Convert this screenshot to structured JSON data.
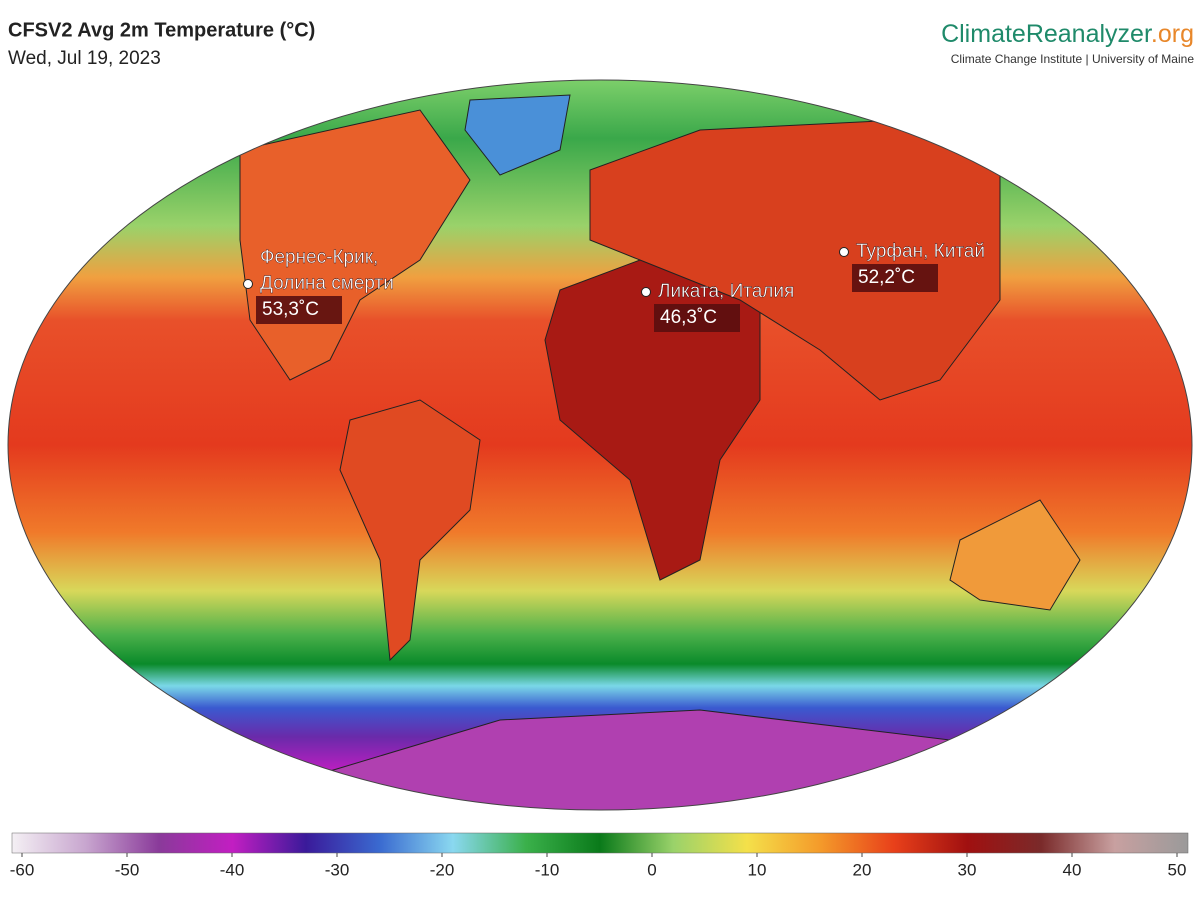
{
  "header": {
    "title": "CFSV2 Avg 2m Temperature (°C)",
    "date": "Wed, Jul 19, 2023"
  },
  "brand": {
    "name": "ClimateReanalyzer",
    "tld": ".org",
    "subtitle": "Climate Change Institute | University of Maine"
  },
  "annotations": [
    {
      "place": [
        "Фернес-Крик,",
        "Долина смерти"
      ],
      "value": "53,3˚C"
    },
    {
      "place": [
        "Ликата, Италия"
      ],
      "value": "46,3˚C"
    },
    {
      "place": [
        "Турфан, Китай"
      ],
      "value": "52,2˚C"
    }
  ],
  "colorbar": {
    "ticks": [
      -60,
      -50,
      -40,
      -30,
      -20,
      -10,
      0,
      10,
      20,
      30,
      40,
      50
    ],
    "colors": [
      "#f4f0f4",
      "#c8a6cf",
      "#8a3a9a",
      "#c21ec2",
      "#3a1a9a",
      "#3a6ad0",
      "#8ad8f0",
      "#3ab04a",
      "#0a7a1a",
      "#9ad26a",
      "#f4e04a",
      "#f49a2a",
      "#e8401a",
      "#a01010",
      "#7a2a2a",
      "#c8a0a0",
      "#9a9a9a"
    ]
  }
}
